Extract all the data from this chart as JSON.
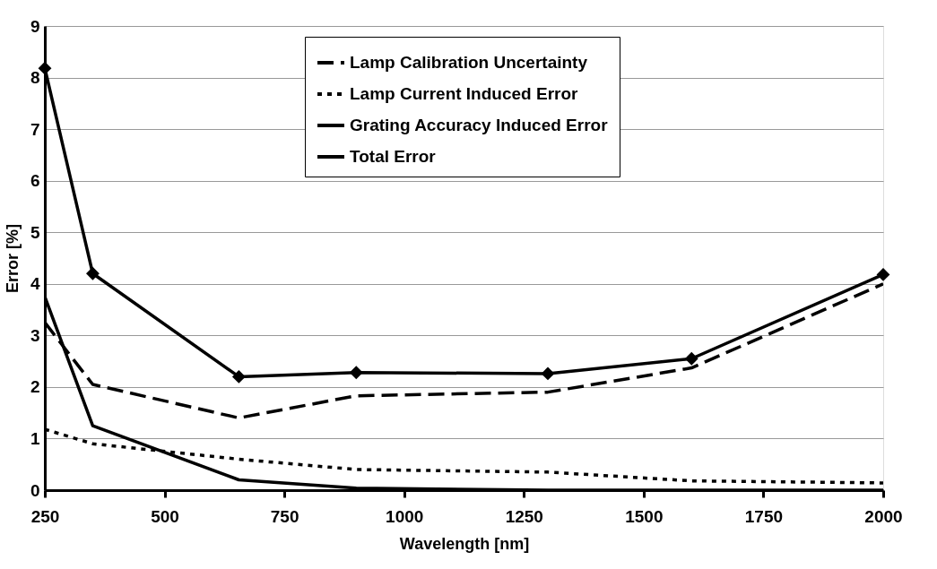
{
  "chart_data": {
    "type": "line",
    "xlabel": "Wavelength [nm]",
    "ylabel": "Error [%]",
    "xlim": [
      250,
      2000
    ],
    "xticks": [
      250,
      500,
      750,
      1000,
      1250,
      1500,
      1750,
      2000
    ],
    "ylim": [
      0,
      9
    ],
    "yticks": [
      0,
      1,
      2,
      3,
      4,
      5,
      6,
      7,
      8,
      9
    ],
    "grid": "y",
    "legend": "top",
    "x": [
      250,
      350,
      655,
      900,
      1300,
      1600,
      2000
    ],
    "series": [
      {
        "name": "Lamp Calibration Uncertainty",
        "color": "#000000",
        "line_style": "dashed",
        "marker": "none",
        "values": [
          3.25,
          2.05,
          1.4,
          1.83,
          1.9,
          2.37,
          4.0
        ]
      },
      {
        "name": "Lamp Current Induced Error",
        "color": "#000000",
        "line_style": "dotted",
        "marker": "none",
        "values": [
          1.18,
          0.9,
          0.6,
          0.4,
          0.35,
          0.18,
          0.14
        ]
      },
      {
        "name": "Grating Accuracy Induced Error",
        "color": "#000000",
        "line_style": "solid",
        "marker": "none",
        "values": [
          3.75,
          1.25,
          0.2,
          0.04,
          0.0,
          0.0,
          0.0
        ]
      },
      {
        "name": "Total Error",
        "color": "#000000",
        "line_style": "solid",
        "marker": "diamond",
        "values": [
          8.18,
          4.2,
          2.2,
          2.28,
          2.26,
          2.55,
          4.18
        ]
      }
    ]
  }
}
